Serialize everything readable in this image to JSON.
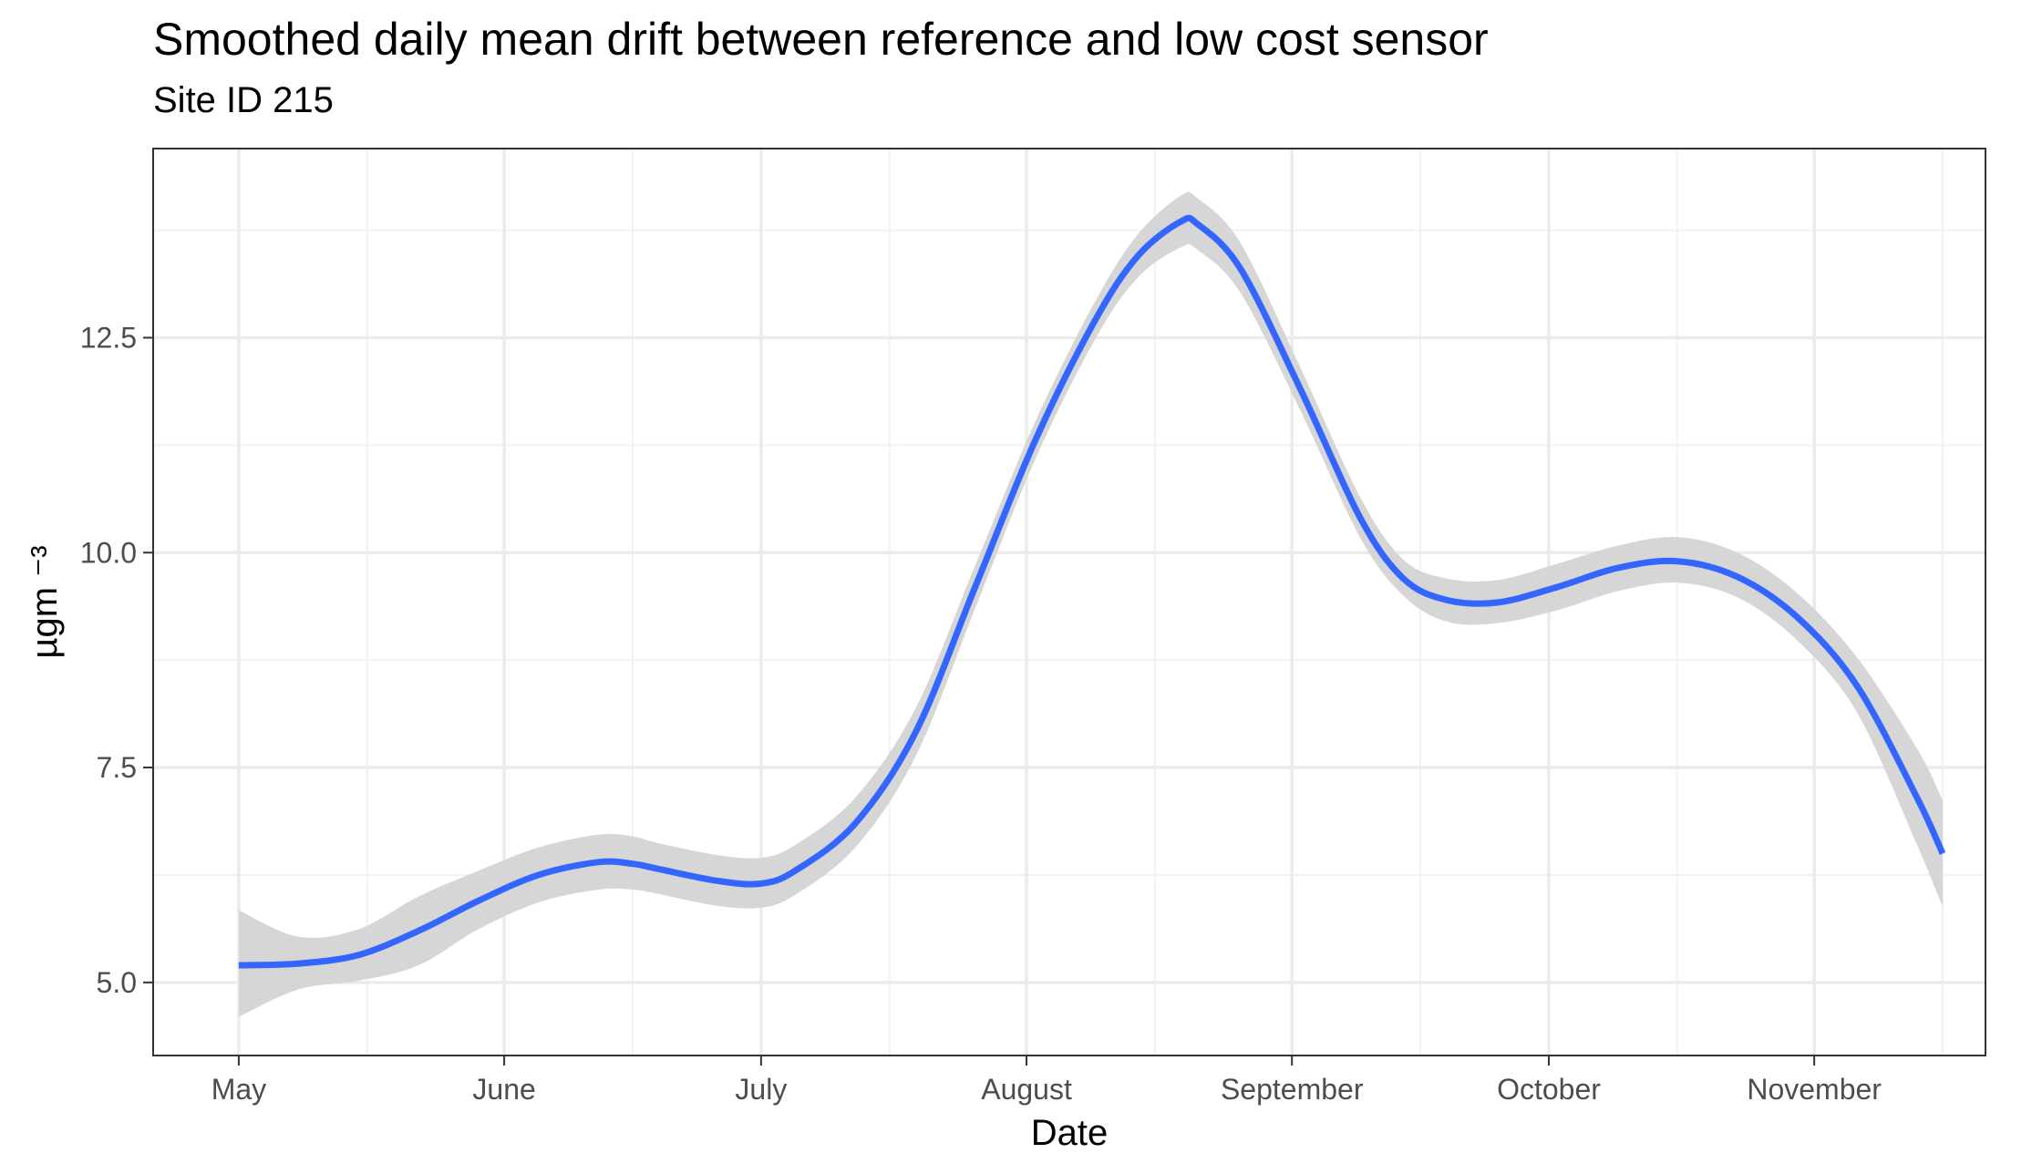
{
  "chart_data": {
    "type": "line",
    "title": "Smoothed daily mean drift between reference and low cost sensor",
    "subtitle": "Site ID 215",
    "xlabel": "Date",
    "ylabel": "µgm ⁻³",
    "x_scale": "date",
    "xlim": [
      "2023-04-21",
      "2023-11-21"
    ],
    "ylim": [
      4.15,
      14.7
    ],
    "x_ticks": [
      {
        "date": "2023-05-01",
        "label": "May"
      },
      {
        "date": "2023-06-01",
        "label": "June"
      },
      {
        "date": "2023-07-01",
        "label": "July"
      },
      {
        "date": "2023-08-01",
        "label": "August"
      },
      {
        "date": "2023-09-01",
        "label": "September"
      },
      {
        "date": "2023-10-01",
        "label": "October"
      },
      {
        "date": "2023-11-01",
        "label": "November"
      }
    ],
    "x_minor_ticks": [
      "2023-05-16",
      "2023-06-16",
      "2023-07-16",
      "2023-08-16",
      "2023-09-16",
      "2023-10-16",
      "2023-11-16"
    ],
    "y_ticks": [
      5.0,
      7.5,
      10.0,
      12.5
    ],
    "y_tick_labels": [
      "5.0",
      "7.5",
      "10.0",
      "12.5"
    ],
    "y_minor_ticks": [
      6.25,
      8.75,
      11.25,
      13.75
    ],
    "grid": true,
    "colors": {
      "line": "#3366ff",
      "ribbon": "#d6d6d6",
      "grid_major": "#ebebeb",
      "grid_minor": "#f2f2f2",
      "panel_border": "#333333"
    },
    "series": [
      {
        "x": [
          "2023-05-01",
          "2023-05-08",
          "2023-05-15",
          "2023-05-22",
          "2023-05-29",
          "2023-06-05",
          "2023-06-12",
          "2023-06-16",
          "2023-06-19",
          "2023-06-26",
          "2023-07-01",
          "2023-07-05",
          "2023-07-12",
          "2023-07-19",
          "2023-07-26",
          "2023-08-02",
          "2023-08-09",
          "2023-08-14",
          "2023-08-19",
          "2023-08-21",
          "2023-08-26",
          "2023-09-02",
          "2023-09-09",
          "2023-09-14",
          "2023-09-19",
          "2023-09-25",
          "2023-10-02",
          "2023-10-09",
          "2023-10-16",
          "2023-10-23",
          "2023-10-30",
          "2023-11-06",
          "2023-11-13",
          "2023-11-16"
        ],
        "y": [
          5.2,
          5.22,
          5.32,
          5.6,
          5.95,
          6.25,
          6.4,
          6.38,
          6.32,
          6.18,
          6.15,
          6.3,
          6.85,
          7.9,
          9.6,
          11.3,
          12.7,
          13.45,
          13.85,
          13.82,
          13.3,
          11.9,
          10.4,
          9.7,
          9.45,
          9.42,
          9.6,
          9.82,
          9.9,
          9.72,
          9.25,
          8.45,
          7.15,
          6.5
        ],
        "y_lower": [
          4.6,
          4.92,
          5.02,
          5.2,
          5.62,
          5.93,
          6.08,
          6.08,
          6.03,
          5.89,
          5.87,
          6.02,
          6.57,
          7.62,
          9.35,
          11.08,
          12.48,
          13.2,
          13.55,
          13.52,
          13.02,
          11.65,
          10.17,
          9.5,
          9.2,
          9.18,
          9.33,
          9.55,
          9.65,
          9.48,
          8.98,
          8.14,
          6.6,
          5.88
        ],
        "y_upper": [
          5.84,
          5.53,
          5.62,
          6.0,
          6.3,
          6.57,
          6.72,
          6.7,
          6.62,
          6.48,
          6.45,
          6.6,
          7.15,
          8.18,
          9.85,
          11.52,
          12.92,
          13.7,
          14.15,
          14.12,
          13.6,
          12.15,
          10.64,
          9.92,
          9.7,
          9.68,
          9.87,
          10.08,
          10.18,
          10.0,
          9.53,
          8.78,
          7.72,
          7.12
        ]
      }
    ]
  }
}
